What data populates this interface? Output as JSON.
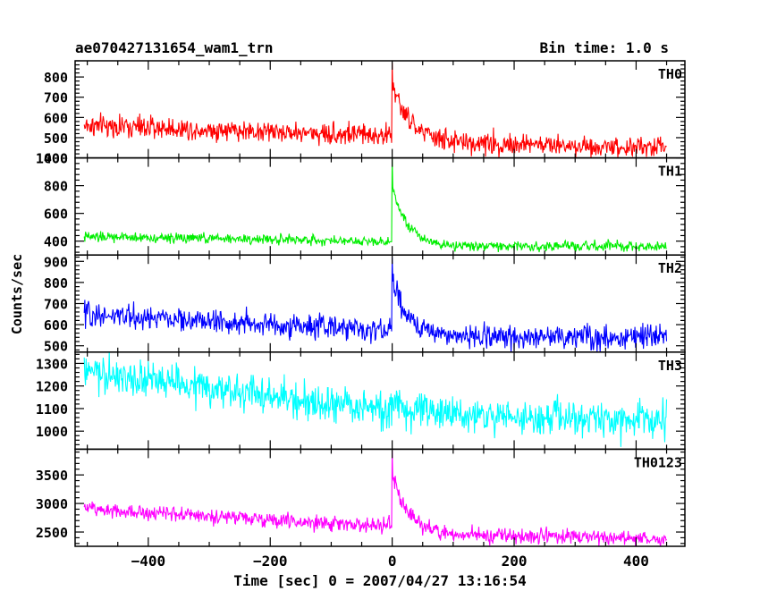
{
  "header": {
    "title": "ae070427131654_wam1_trn",
    "bin_time": "Bin time: 1.0 s"
  },
  "axes": {
    "ylabel": "Counts/sec",
    "xlabel": "Time [sec] 0 = 2007/04/27 13:16:54"
  },
  "chart_data": {
    "type": "line",
    "title": "ae070427131654_wam1_trn",
    "xlabel": "Time [sec] 0 = 2007/04/27 13:16:54",
    "ylabel": "Counts/sec",
    "xlim": [
      -520,
      480
    ],
    "x_range_data": [
      -505,
      450
    ],
    "bin_time_s": 1.0,
    "x_ticks": [
      -400,
      -200,
      0,
      200,
      400
    ],
    "burst_time": 0,
    "panels": [
      {
        "name": "TH0",
        "color": "#ff0000",
        "ylim": [
          400,
          880
        ],
        "y_ticks": [
          400,
          500,
          600,
          700,
          800
        ],
        "y_minor_step": 20,
        "baseline": [
          [
            -505,
            560
          ],
          [
            -300,
            540
          ],
          [
            -100,
            520
          ],
          [
            -10,
            515
          ],
          [
            100,
            475
          ],
          [
            450,
            450
          ]
        ],
        "noise_sd": 27,
        "peak": 870,
        "peak_decay_s": 25
      },
      {
        "name": "TH1",
        "color": "#00ee00",
        "ylim": [
          300,
          1000
        ],
        "y_ticks": [
          400,
          600,
          800,
          1000
        ],
        "y_minor_step": 40,
        "baseline": [
          [
            -505,
            430
          ],
          [
            -300,
            420
          ],
          [
            -100,
            405
          ],
          [
            -10,
            400
          ],
          [
            100,
            365
          ],
          [
            450,
            360
          ]
        ],
        "noise_sd": 18,
        "peak": 995,
        "peak_decay_s": 22
      },
      {
        "name": "TH2",
        "color": "#0000ff",
        "ylim": [
          470,
          930
        ],
        "y_ticks": [
          500,
          600,
          700,
          800,
          900
        ],
        "y_minor_step": 20,
        "baseline": [
          [
            -505,
            650
          ],
          [
            -300,
            615
          ],
          [
            -100,
            585
          ],
          [
            -10,
            575
          ],
          [
            100,
            545
          ],
          [
            450,
            540
          ]
        ],
        "noise_sd": 28,
        "peak": 920,
        "peak_decay_s": 22
      },
      {
        "name": "TH3",
        "color": "#00ffff",
        "ylim": [
          920,
          1350
        ],
        "y_ticks": [
          1000,
          1100,
          1200,
          1300
        ],
        "y_minor_step": 20,
        "baseline": [
          [
            -505,
            1260
          ],
          [
            -300,
            1190
          ],
          [
            -100,
            1115
          ],
          [
            0,
            1090
          ],
          [
            200,
            1060
          ],
          [
            450,
            1045
          ]
        ],
        "noise_sd": 40,
        "peak": 1150,
        "peak_decay_s": 15
      },
      {
        "name": "TH0123",
        "color": "#ff00ff",
        "ylim": [
          2250,
          3950
        ],
        "y_ticks": [
          2500,
          3000,
          3500
        ],
        "y_minor_step": 100,
        "baseline": [
          [
            -505,
            2920
          ],
          [
            -300,
            2780
          ],
          [
            -100,
            2640
          ],
          [
            -10,
            2610
          ],
          [
            100,
            2450
          ],
          [
            450,
            2390
          ]
        ],
        "noise_sd": 65,
        "peak": 3930,
        "peak_decay_s": 22
      }
    ]
  }
}
